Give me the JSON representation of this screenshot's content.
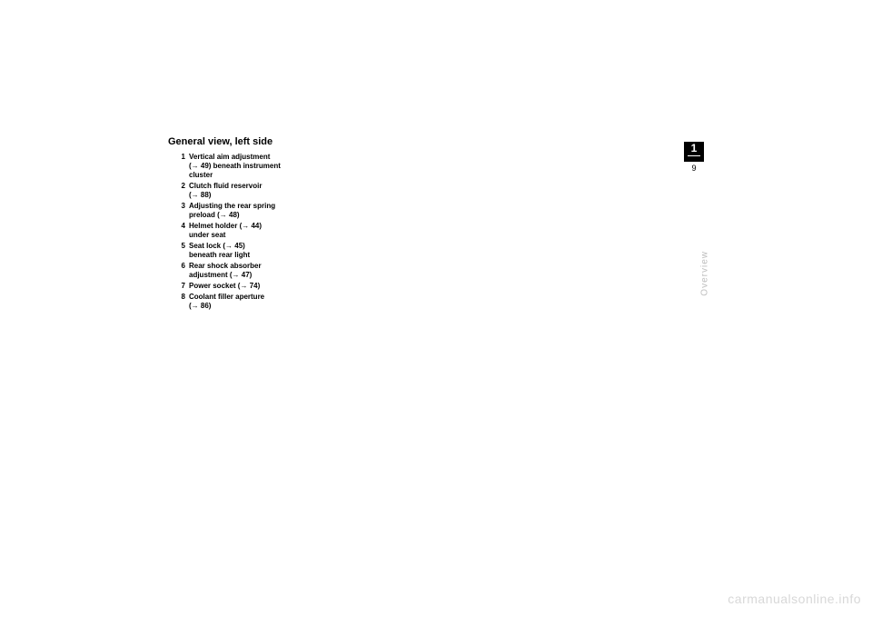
{
  "heading": "General view, left side",
  "items": [
    {
      "n": "1",
      "line1": "Vertical aim adjustment",
      "line2": "(→ 49) beneath instrument",
      "line3": "cluster"
    },
    {
      "n": "2",
      "line1": "Clutch fluid reservoir",
      "line2": "(→ 88)"
    },
    {
      "n": "3",
      "line1": "Adjusting the rear spring",
      "line2": "preload (→ 48)"
    },
    {
      "n": "4",
      "line1": "Helmet holder (→ 44)",
      "line2": "under seat"
    },
    {
      "n": "5",
      "line1": "Seat lock (→ 45)",
      "line2": "beneath rear light"
    },
    {
      "n": "6",
      "line1": "Rear shock absorber",
      "line2": "adjustment (→ 47)"
    },
    {
      "n": "7",
      "line1": "Power socket (→ 74)"
    },
    {
      "n": "8",
      "line1": "Coolant filler aperture",
      "line2": "(→ 86)"
    }
  ],
  "tab": {
    "chapter": "1",
    "page": "9"
  },
  "sectionLabel": "Overview",
  "watermark": "carmanualsonline.info",
  "colors": {
    "text": "#000000",
    "bg": "#ffffff",
    "tabBg": "#000000",
    "tabText": "#ffffff",
    "sideLabel": "#bdbdbd",
    "watermark": "#d8d8d8"
  }
}
